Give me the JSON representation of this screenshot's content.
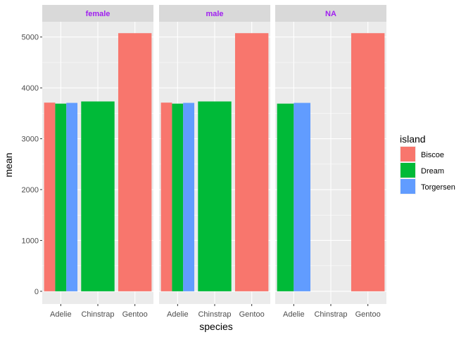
{
  "chart_data": {
    "type": "bar",
    "facet_by": "sex",
    "facets": [
      {
        "label": "female",
        "bars": [
          {
            "species": "Adelie",
            "island": "Biscoe",
            "value": 3710
          },
          {
            "species": "Adelie",
            "island": "Dream",
            "value": 3690
          },
          {
            "species": "Adelie",
            "island": "Torgersen",
            "value": 3705
          },
          {
            "species": "Chinstrap",
            "island": "Dream",
            "value": 3733
          },
          {
            "species": "Gentoo",
            "island": "Biscoe",
            "value": 5076
          }
        ]
      },
      {
        "label": "male",
        "bars": [
          {
            "species": "Adelie",
            "island": "Biscoe",
            "value": 3710
          },
          {
            "species": "Adelie",
            "island": "Dream",
            "value": 3690
          },
          {
            "species": "Adelie",
            "island": "Torgersen",
            "value": 3705
          },
          {
            "species": "Chinstrap",
            "island": "Dream",
            "value": 3733
          },
          {
            "species": "Gentoo",
            "island": "Biscoe",
            "value": 5076
          }
        ]
      },
      {
        "label": "NA",
        "bars": [
          {
            "species": "Adelie",
            "island": "Dream",
            "value": 3690
          },
          {
            "species": "Adelie",
            "island": "Torgersen",
            "value": 3705
          },
          {
            "species": "Gentoo",
            "island": "Biscoe",
            "value": 5076
          }
        ]
      }
    ],
    "categories": [
      "Adelie",
      "Chinstrap",
      "Gentoo"
    ],
    "xlabel": "species",
    "ylabel": "mean",
    "ylim": [
      -250,
      5300
    ],
    "yticks": [
      0,
      1000,
      2000,
      3000,
      4000,
      5000
    ],
    "legend": {
      "title": "island",
      "position": "right",
      "items": [
        {
          "label": "Biscoe",
          "color": "#F8766D"
        },
        {
          "label": "Dream",
          "color": "#00BA38"
        },
        {
          "label": "Torgersen",
          "color": "#619CFF"
        }
      ]
    },
    "colors": {
      "panel_background": "#EBEBEB",
      "grid_major": "#FFFFFF",
      "strip_background": "#D9D9D9",
      "strip_text": "#A020F0"
    },
    "grid": true
  }
}
